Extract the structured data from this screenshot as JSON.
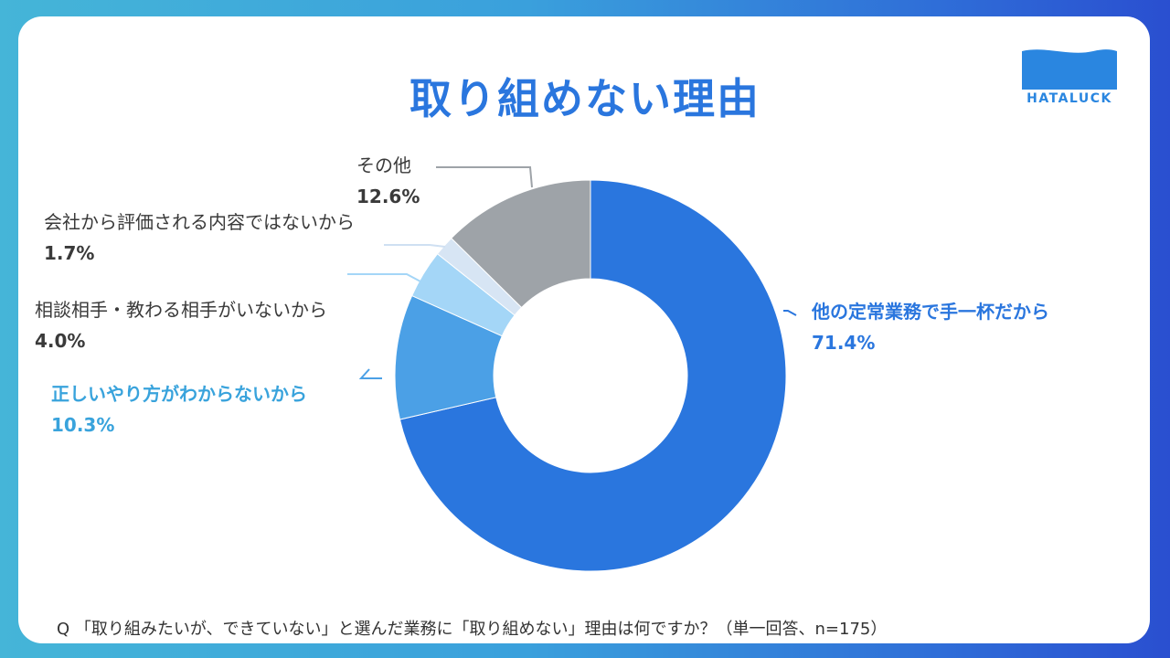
{
  "brand": {
    "name": "HATALUCK",
    "color": "#2a86e0"
  },
  "chart_data": {
    "type": "pie",
    "title": "取り組めない理由",
    "donut": true,
    "slices": [
      {
        "label": "他の定常業務で手一杯だから",
        "value": 71.4,
        "display": "71.4%",
        "color": "#2a76de"
      },
      {
        "label": "正しいやり方がわからないから",
        "value": 10.3,
        "display": "10.3%",
        "color": "#4ba0e6"
      },
      {
        "label": "相談相手・教わる相手がいないから",
        "value": 4.0,
        "display": "4.0%",
        "color": "#a4d6f7"
      },
      {
        "label": "会社から評価される内容ではないから",
        "value": 1.7,
        "display": "1.7%",
        "color": "#d7e5f4"
      },
      {
        "label": "その他",
        "value": 12.6,
        "display": "12.6%",
        "color": "#9ea3a8"
      }
    ]
  },
  "footer": {
    "question": "Q 「取り組みたいが、できていない」と選んだ業務に「取り組めない」理由は何ですか？（単一回答、n=175）"
  }
}
